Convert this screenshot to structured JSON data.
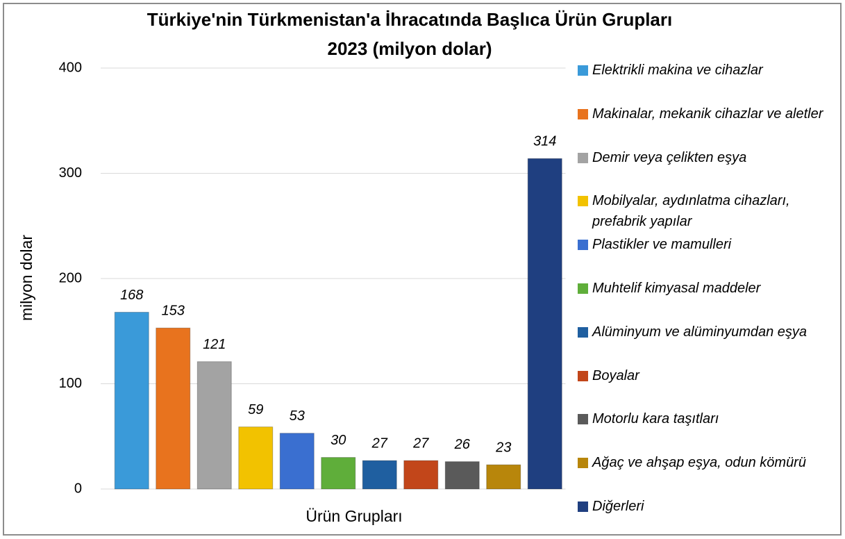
{
  "chart_data": {
    "type": "bar",
    "title": "Türkiye'nin Türkmenistan'a İhracatında Başlıca Ürün Grupları",
    "subtitle": "2023 (milyon dolar)",
    "x_label": "Ürün Grupları",
    "y_label": "milyon dolar",
    "ylim": [
      0,
      400
    ],
    "yticks": [
      0,
      100,
      200,
      300,
      400
    ],
    "grid": true,
    "legend": "right",
    "series": [
      {
        "name": "Elektrikli makina ve cihazlar",
        "color": "#3a9ad9",
        "values": [
          168
        ]
      },
      {
        "name": "Makinalar, mekanik cihazlar ve aletler",
        "color": "#e8731e",
        "values": [
          153
        ]
      },
      {
        "name": "Demir veya çelikten eşya",
        "color": "#a3a3a3",
        "values": [
          121
        ]
      },
      {
        "name": "Mobilyalar, aydınlatma cihazları, prefabrik yapılar",
        "color": "#f2c200",
        "values": [
          59
        ]
      },
      {
        "name": "Plastikler ve mamulleri",
        "color": "#3a6fd0",
        "values": [
          53
        ]
      },
      {
        "name": "Muhtelif kimyasal maddeler",
        "color": "#5fae3a",
        "values": [
          30
        ]
      },
      {
        "name": "Alüminyum ve alüminyumdan eşya",
        "color": "#1f5fa0",
        "values": [
          27
        ]
      },
      {
        "name": "Boyalar",
        "color": "#c2461a",
        "values": [
          27
        ]
      },
      {
        "name": "Motorlu kara taşıtları",
        "color": "#5a5a5a",
        "values": [
          26
        ]
      },
      {
        "name": "Ağaç ve ahşap eşya, odun kömürü",
        "color": "#b8860b",
        "values": [
          23
        ]
      },
      {
        "name": "Diğerleri",
        "color": "#1f3f80",
        "values": [
          314
        ]
      }
    ]
  }
}
